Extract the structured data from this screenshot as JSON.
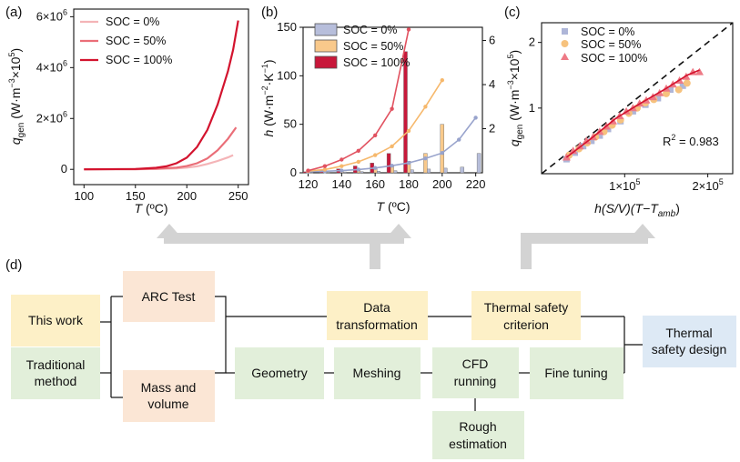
{
  "colors": {
    "soc0_line": "#f4b4b7",
    "soc50_line": "#ea6e78",
    "soc100_line": "#d3132e",
    "bar_soc0": "#b7bedb",
    "bar_soc50": "#f9c98b",
    "bar_soc100": "#c8173a",
    "scatter_soc0": "#aeb6d8",
    "scatter_soc50": "#f6c27e",
    "scatter_soc100": "#ee7a86",
    "box_orange": "#fbe6d5",
    "box_yellow": "#fdf0c7",
    "box_green": "#e2efda",
    "box_blue": "#dde9f5",
    "arrow_gray": "#d3d3d3"
  },
  "chart_data": [
    {
      "id": "a",
      "panel_label": "(a)",
      "type": "line",
      "xlabel": "T",
      "xunit": " (ºC)",
      "ylabel_main": "q",
      "ylabel_sub": "gen",
      "ylabel_unit": " (W·m",
      "ylabel_sup1": "−3",
      "ylabel_tail": "×10",
      "ylabel_sup2": "5",
      "ylabel_end": ")",
      "xlim": [
        90,
        260
      ],
      "ylim": [
        -600000,
        6300000
      ],
      "xticks": [
        100,
        150,
        200,
        250
      ],
      "yticks": [
        {
          "value": 0,
          "base": "0",
          "exp": ""
        },
        {
          "value": 2000000,
          "base": "2×10",
          "exp": "6"
        },
        {
          "value": 4000000,
          "base": "4×10",
          "exp": "6"
        },
        {
          "value": 6000000,
          "base": "6×10",
          "exp": "6"
        }
      ],
      "legend": [
        "SOC = 0%",
        "SOC = 50%",
        "SOC = 100%"
      ],
      "series": [
        {
          "name": "SOC = 0%",
          "x": [
            100,
            150,
            170,
            190,
            200,
            210,
            220,
            230,
            240,
            245
          ],
          "y": [
            0,
            5000,
            15000,
            40000,
            70000,
            120000,
            210000,
            330000,
            470000,
            560000
          ]
        },
        {
          "name": "SOC = 50%",
          "x": [
            100,
            150,
            170,
            190,
            200,
            210,
            220,
            230,
            240,
            248
          ],
          "y": [
            0,
            8000,
            25000,
            70000,
            130000,
            240000,
            430000,
            750000,
            1200000,
            1650000
          ]
        },
        {
          "name": "SOC = 100%",
          "x": [
            100,
            150,
            170,
            180,
            190,
            200,
            210,
            220,
            230,
            240,
            245,
            250
          ],
          "y": [
            0,
            15000,
            60000,
            120000,
            240000,
            460000,
            880000,
            1550000,
            2550000,
            3850000,
            4700000,
            5850000
          ]
        }
      ]
    },
    {
      "id": "b",
      "panel_label": "(b)",
      "type": "bar+line",
      "xlabel": "T",
      "xunit": " (ºC)",
      "ylabel_main": "h",
      "ylabel_unit": " (W·m",
      "ylabel_sup1": "−2",
      "ylabel_mid": "·K",
      "ylabel_sup2": "−1",
      "ylabel_end": ")",
      "xlim": [
        117,
        224
      ],
      "ylim": [
        0,
        150
      ],
      "ylim_right": [
        0,
        6.6
      ],
      "xticks": [
        120,
        140,
        160,
        180,
        200,
        220
      ],
      "yticks": [
        0,
        50,
        100,
        150
      ],
      "yticks_right": [
        2,
        4,
        6
      ],
      "legend": [
        "SOC = 0%",
        "SOC = 50%",
        "SOC = 100%"
      ],
      "bars": [
        {
          "name": "SOC = 0%",
          "x": [
            120,
            130,
            140,
            150,
            160,
            170,
            180,
            190,
            200,
            210,
            220
          ],
          "y": [
            0.3,
            0.5,
            0.8,
            1.2,
            1.6,
            2.2,
            3.0,
            3.8,
            4.8,
            5.8,
            20
          ]
        },
        {
          "name": "SOC = 50%",
          "x": [
            120,
            130,
            140,
            150,
            160,
            170,
            180,
            190,
            200
          ],
          "y": [
            0.5,
            1.0,
            1.5,
            2.5,
            4.5,
            7,
            12,
            20,
            50
          ]
        },
        {
          "name": "SOC = 100%",
          "x": [
            120,
            130,
            140,
            150,
            160,
            170,
            180
          ],
          "y": [
            1,
            2,
            4,
            7,
            10,
            20,
            125
          ]
        }
      ],
      "lines": [
        {
          "name": "SOC = 0%",
          "x": [
            120,
            130,
            140,
            150,
            160,
            170,
            180,
            190,
            200,
            210,
            220
          ],
          "y": [
            0.05,
            0.07,
            0.1,
            0.15,
            0.22,
            0.32,
            0.45,
            0.65,
            0.9,
            1.5,
            2.5
          ]
        },
        {
          "name": "SOC = 50%",
          "x": [
            120,
            130,
            140,
            150,
            160,
            170,
            180,
            190,
            200
          ],
          "y": [
            0.08,
            0.15,
            0.3,
            0.5,
            0.8,
            1.2,
            1.9,
            3.0,
            4.2
          ]
        },
        {
          "name": "SOC = 100%",
          "x": [
            120,
            130,
            140,
            150,
            160,
            170,
            180
          ],
          "y": [
            0.1,
            0.3,
            0.6,
            1.0,
            1.7,
            2.9,
            6.5
          ]
        }
      ]
    },
    {
      "id": "c",
      "panel_label": "(c)",
      "type": "scatter",
      "xlabel": "h(S/V)(T−T",
      "xlabel_sub": "amb",
      "xlabel_end": ")",
      "ylabel_main": "q",
      "ylabel_sub": "gen",
      "ylabel_unit": " (W·m",
      "ylabel_sup1": "−3",
      "ylabel_tail": "×10",
      "ylabel_sup2": "5",
      "ylabel_end": ")",
      "xlim": [
        0,
        230000
      ],
      "ylim": [
        0,
        2.3
      ],
      "xticks": [
        {
          "value": 100000,
          "base": "1×10",
          "exp": "5"
        },
        {
          "value": 200000,
          "base": "2×10",
          "exp": "5"
        }
      ],
      "yticks": [
        1,
        2
      ],
      "annotation": {
        "base": "R",
        "sup": "2",
        "rest": " = 0.983"
      },
      "legend": [
        "SOC = 0%",
        "SOC = 50%",
        "SOC = 100%"
      ],
      "reference_line": {
        "x": [
          0,
          230000
        ],
        "y": [
          0,
          2.3
        ]
      },
      "series": [
        {
          "name": "SOC = 0%",
          "marker": "square",
          "x": [
            30000,
            40000,
            50000,
            60000,
            70000,
            80000,
            95000,
            110000,
            125000,
            140000,
            155000,
            170000
          ],
          "y": [
            0.22,
            0.32,
            0.42,
            0.5,
            0.58,
            0.68,
            0.8,
            0.95,
            1.05,
            1.15,
            1.28,
            1.34
          ]
        },
        {
          "name": "SOC = 50%",
          "marker": "circle",
          "x": [
            33000,
            45000,
            55000,
            65000,
            75000,
            85000,
            95000,
            105000,
            115000,
            125000,
            135000,
            150000,
            165000,
            175000
          ],
          "y": [
            0.28,
            0.38,
            0.47,
            0.56,
            0.64,
            0.74,
            0.82,
            0.92,
            1.0,
            1.08,
            1.13,
            1.22,
            1.28,
            1.38
          ]
        },
        {
          "name": "SOC = 100%",
          "marker": "triangle",
          "x": [
            30000,
            38000,
            46000,
            54000,
            62000,
            70000,
            78000,
            86000,
            94000,
            102000,
            110000,
            118000,
            126000,
            134000,
            142000,
            150000,
            158000,
            166000,
            174000,
            182000,
            190000
          ],
          "y": [
            0.25,
            0.35,
            0.42,
            0.5,
            0.56,
            0.64,
            0.72,
            0.8,
            0.88,
            0.95,
            1.0,
            1.07,
            1.12,
            1.17,
            1.23,
            1.3,
            1.36,
            1.42,
            1.48,
            1.55,
            1.55
          ]
        },
        {
          "name": "SOC = 100% fit",
          "marker": "none",
          "x": [
            30000,
            60000,
            90000,
            120000,
            150000,
            175000,
            190000
          ],
          "y": [
            0.25,
            0.54,
            0.85,
            1.08,
            1.3,
            1.5,
            1.58
          ]
        }
      ]
    }
  ],
  "flowchart": {
    "panel_label": "(d)",
    "this_work": "This work",
    "traditional_1": "Traditional",
    "traditional_2": "method",
    "arc_test": "ARC Test",
    "mass_1": "Mass and",
    "mass_2": "volume",
    "data_1": "Data",
    "data_2": "transformation",
    "geometry": "Geometry",
    "meshing": "Meshing",
    "cfd_1": "CFD",
    "cfd_2": "running",
    "rough_1": "Rough",
    "rough_2": "estimation",
    "criterion_1": "Thermal safety",
    "criterion_2": "criterion",
    "fine_tuning": "Fine tuning",
    "design_1": "Thermal",
    "design_2": "safety design"
  }
}
